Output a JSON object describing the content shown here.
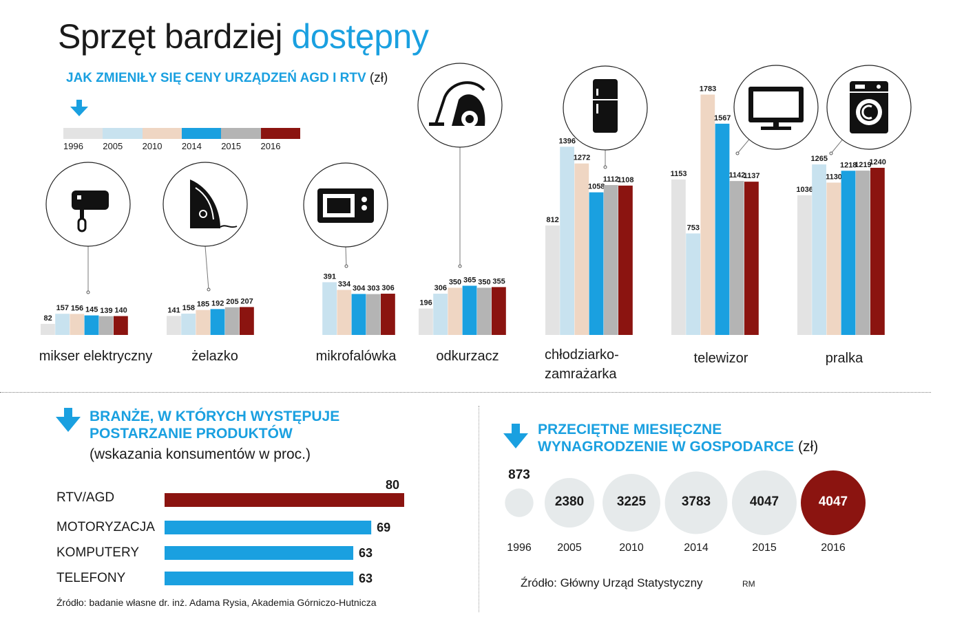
{
  "title": {
    "part1": "Sprzęt bardziej",
    "part2": "dostępny"
  },
  "section1": {
    "heading": "JAK ZMIENIŁY SIĘ CENY URZĄDZEŃ AGD I RTV",
    "unit": "(zł)"
  },
  "colors": {
    "blue": "#1aa0e0",
    "dark_red": "#8b1410",
    "years": [
      "#e3e3e3",
      "#c8e2ef",
      "#efd6c3",
      "#1aa0e0",
      "#b4b4b4",
      "#8b1410"
    ]
  },
  "legend": {
    "years": [
      "1996",
      "2005",
      "2010",
      "2014",
      "2015",
      "2016"
    ]
  },
  "chart_data": [
    {
      "type": "bar",
      "title": "JAK ZMIENIŁY SIĘ CENY URZĄDZEŃ AGD I RTV (zł)",
      "years": [
        "1996",
        "2005",
        "2010",
        "2014",
        "2015",
        "2016"
      ],
      "categories": [
        {
          "name": "mikser elektryczny",
          "icon": "mixer-icon",
          "values": [
            82,
            157,
            156,
            145,
            139,
            140
          ]
        },
        {
          "name": "żelazko",
          "icon": "iron-icon",
          "values": [
            141,
            158,
            185,
            192,
            205,
            207
          ]
        },
        {
          "name": "mikrofalówka",
          "icon": "microwave-icon",
          "values": [
            null,
            391,
            334,
            304,
            303,
            306
          ]
        },
        {
          "name": "odkurzacz",
          "icon": "vacuum-cleaner-icon",
          "values": [
            196,
            306,
            350,
            365,
            350,
            355
          ]
        },
        {
          "name": "chłodziarko-zamrażarka",
          "label_lines": [
            "chłodziarko-",
            "zamrażarka"
          ],
          "icon": "fridge-icon",
          "values": [
            812,
            1396,
            1272,
            1058,
            1112,
            1108
          ]
        },
        {
          "name": "telewizor",
          "icon": "tv-icon",
          "values": [
            1153,
            753,
            1783,
            1567,
            1142,
            1137
          ]
        },
        {
          "name": "pralka",
          "icon": "washing-machine-icon",
          "values": [
            1036,
            1265,
            1130,
            1218,
            1219,
            1240
          ]
        }
      ]
    },
    {
      "type": "bar",
      "orientation": "horizontal",
      "title": "BRANŻE, W KTÓRYCH WYSTĘPUJE POSTARZANIE PRODUKTÓW",
      "subtitle": "(wskazania konsumentów w proc.)",
      "categories": [
        "RTV/AGD",
        "MOTORYZACJA",
        "KOMPUTERY",
        "TELEFONY"
      ],
      "values": [
        80,
        69,
        63,
        63
      ],
      "xlim": [
        0,
        80
      ]
    },
    {
      "type": "bubble",
      "title": "PRZECIĘTNE MIESIĘCZNE WYNAGRODZENIE W GOSPODARCE",
      "unit": "(zł)",
      "categories": [
        "1996",
        "2005",
        "2010",
        "2014",
        "2015",
        "2016"
      ],
      "values": [
        873,
        2380,
        3225,
        3783,
        4047,
        4047
      ]
    }
  ],
  "section2": {
    "heading_line1": "BRANŻE, W KTÓRYCH WYSTĘPUJE",
    "heading_line2": "POSTARZANIE PRODUKTÓW",
    "subtitle": "(wskazania konsumentów w proc.)",
    "source": "Źródło: badanie własne dr. inż. Adama Rysia, Akademia Górniczo-Hutnicza"
  },
  "section3": {
    "heading_line1": "PRZECIĘTNE MIESIĘCZNE",
    "heading_line2": "WYNAGRODZENIE W GOSPODARCE",
    "unit": "(zł)",
    "source": "Źródło: Główny Urząd Statystyczny",
    "author": "RM"
  }
}
